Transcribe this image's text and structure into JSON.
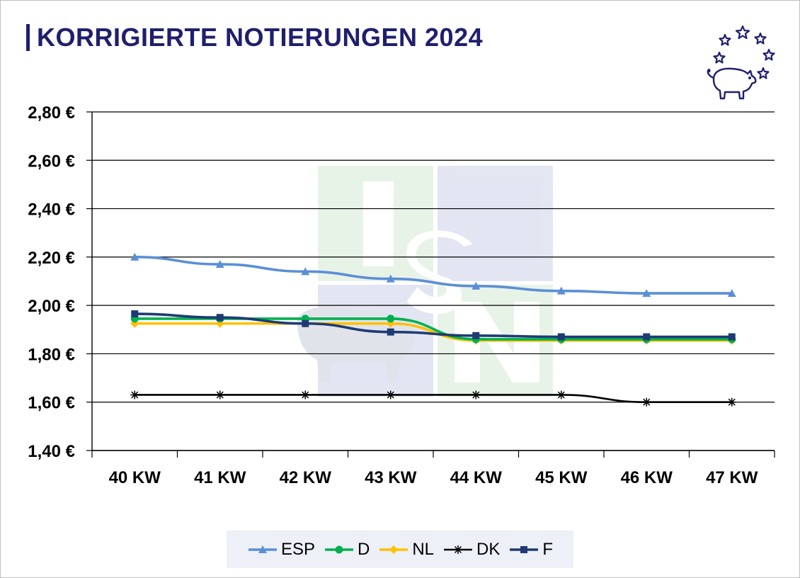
{
  "title": "KORRIGIERTE NOTIERUNGEN 2024",
  "logo_icon": "pig-with-stars-icon",
  "chart_data": {
    "type": "line",
    "title": "KORRIGIERTE NOTIERUNGEN 2024",
    "xlabel": "",
    "ylabel": "",
    "categories": [
      "40 KW",
      "41 KW",
      "42 KW",
      "43 KW",
      "44 KW",
      "45 KW",
      "46 KW",
      "47 KW"
    ],
    "ylim": [
      1.4,
      2.8
    ],
    "yticks": [
      1.4,
      1.6,
      1.8,
      2.0,
      2.2,
      2.4,
      2.6,
      2.8
    ],
    "ytick_labels": [
      "1,40 €",
      "1,60 €",
      "1,80 €",
      "2,00 €",
      "2,20 €",
      "2,40 €",
      "2,60 €",
      "2,80 €"
    ],
    "grid": true,
    "legend_position": "bottom",
    "series": [
      {
        "name": "ESP",
        "color": "#5b8fd6",
        "marker": "triangle",
        "values": [
          2.2,
          2.17,
          2.14,
          2.11,
          2.08,
          2.06,
          2.05,
          2.05
        ]
      },
      {
        "name": "D",
        "color": "#00b050",
        "marker": "circle",
        "values": [
          1.945,
          1.945,
          1.945,
          1.945,
          1.86,
          1.86,
          1.86,
          1.86
        ]
      },
      {
        "name": "NL",
        "color": "#ffc000",
        "marker": "diamond",
        "values": [
          1.925,
          1.925,
          1.925,
          1.925,
          1.855,
          1.855,
          1.855,
          1.855
        ]
      },
      {
        "name": "DK",
        "color": "#000000",
        "marker": "star",
        "values": [
          1.63,
          1.63,
          1.63,
          1.63,
          1.63,
          1.63,
          1.6,
          1.6
        ]
      },
      {
        "name": "F",
        "color": "#1f3b73",
        "marker": "square",
        "values": [
          1.965,
          1.95,
          1.925,
          1.89,
          1.875,
          1.87,
          1.87,
          1.87
        ]
      }
    ]
  }
}
